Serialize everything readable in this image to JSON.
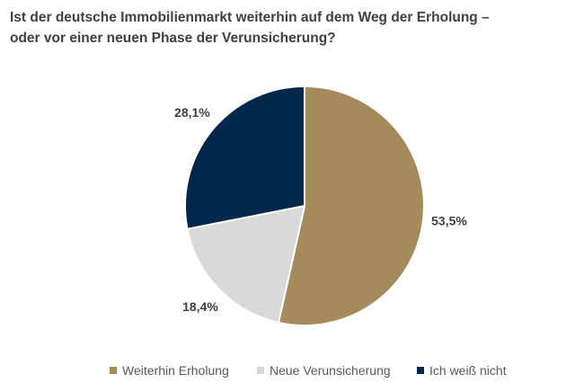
{
  "chart_data": {
    "type": "pie",
    "title_lines": [
      "Ist der deutsche Immobilienmarkt weiterhin auf dem Weg der Erholung –",
      "oder vor einer neuen Phase der Verunsicherung?"
    ],
    "categories": [
      "Weiterhin Erholung",
      "Neue Verunsicherung",
      "Ich weiß nicht"
    ],
    "values": [
      53.5,
      18.4,
      28.1
    ],
    "data_labels": [
      "53,5%",
      "18,4%",
      "28,1%"
    ],
    "colors": [
      "#A58A5C",
      "#D9D9D9",
      "#00284B"
    ],
    "start_angle": "12 o'clock",
    "direction": "clockwise",
    "legend_position": "bottom"
  }
}
